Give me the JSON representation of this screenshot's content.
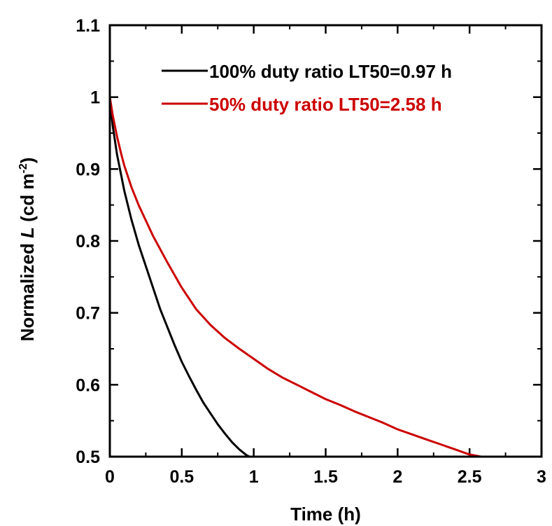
{
  "chart_data": {
    "type": "line",
    "xlabel": "Time (h)",
    "ylabel": {
      "prefix": "Normalized ",
      "italic": "L",
      "unit_open": " (cd m",
      "superscript": "-2",
      "unit_close": ")"
    },
    "xlim": [
      0,
      3
    ],
    "ylim": [
      0.5,
      1.1
    ],
    "xticks": [
      0,
      0.5,
      1,
      1.5,
      2,
      2.5,
      3
    ],
    "xtick_labels": [
      "0",
      "0.5",
      "1",
      "1.5",
      "2",
      "2.5",
      "3"
    ],
    "yticks": [
      0.5,
      0.6,
      0.7,
      0.8,
      0.9,
      1.0,
      1.1
    ],
    "ytick_labels": [
      "0.5",
      "0.6",
      "0.7",
      "0.8",
      "0.9",
      "1",
      "1.1"
    ],
    "grid": false,
    "legend_position": "top-right",
    "series": [
      {
        "name": "100% duty ratio LT50=0.97 h",
        "color": "#000000",
        "x": [
          0,
          0.02,
          0.05,
          0.08,
          0.1,
          0.15,
          0.2,
          0.25,
          0.3,
          0.35,
          0.4,
          0.45,
          0.5,
          0.55,
          0.6,
          0.65,
          0.7,
          0.75,
          0.8,
          0.85,
          0.9,
          0.95,
          0.97
        ],
        "y": [
          1.0,
          0.96,
          0.92,
          0.89,
          0.87,
          0.83,
          0.795,
          0.765,
          0.735,
          0.705,
          0.68,
          0.655,
          0.632,
          0.612,
          0.593,
          0.575,
          0.56,
          0.545,
          0.532,
          0.52,
          0.51,
          0.502,
          0.5
        ]
      },
      {
        "name": "50% duty ratio LT50=2.58 h",
        "color": "#cc0000",
        "x": [
          0,
          0.02,
          0.05,
          0.08,
          0.1,
          0.15,
          0.2,
          0.3,
          0.4,
          0.5,
          0.6,
          0.7,
          0.8,
          0.9,
          1.0,
          1.1,
          1.2,
          1.3,
          1.4,
          1.5,
          1.6,
          1.7,
          1.8,
          1.9,
          2.0,
          2.1,
          2.2,
          2.3,
          2.4,
          2.5,
          2.58
        ],
        "y": [
          1.0,
          0.975,
          0.945,
          0.92,
          0.905,
          0.875,
          0.85,
          0.807,
          0.77,
          0.735,
          0.705,
          0.683,
          0.665,
          0.65,
          0.636,
          0.622,
          0.61,
          0.6,
          0.59,
          0.58,
          0.572,
          0.563,
          0.555,
          0.547,
          0.538,
          0.531,
          0.524,
          0.517,
          0.51,
          0.503,
          0.5
        ]
      }
    ]
  }
}
